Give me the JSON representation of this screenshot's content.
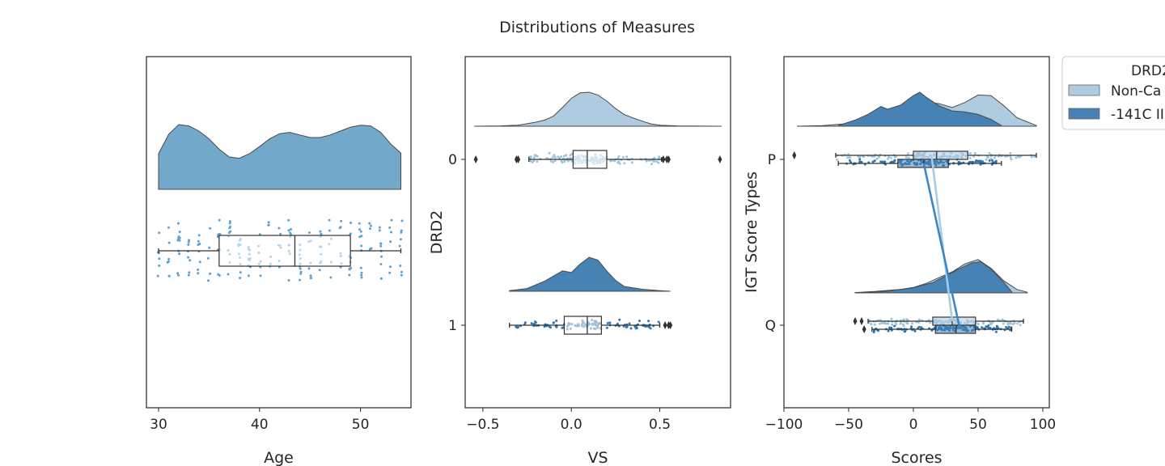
{
  "figure": {
    "title": "Distributions of Measures",
    "colors": {
      "light": "#aecbe0",
      "dark": "#4682b4",
      "mid": "#72a8c9",
      "line": "#555555"
    }
  },
  "legend": {
    "title": "DRD2",
    "entries": [
      "Non-Ca",
      "-141C II"
    ]
  },
  "chart_data": [
    {
      "type": "raincloud",
      "xlabel": "Age",
      "ylabel": "",
      "xlim": [
        28.8,
        55.0
      ],
      "xticks": [
        "30",
        "40",
        "50"
      ],
      "yticks": [],
      "box": {
        "whisker_low": 30,
        "q1": 36,
        "median": 43.5,
        "q3": 49,
        "whisker_high": 54
      },
      "density": [
        [
          30,
          0.55
        ],
        [
          31,
          0.85
        ],
        [
          32,
          1.0
        ],
        [
          33,
          0.98
        ],
        [
          34,
          0.9
        ],
        [
          35,
          0.78
        ],
        [
          36,
          0.62
        ],
        [
          37,
          0.5
        ],
        [
          38,
          0.48
        ],
        [
          39,
          0.55
        ],
        [
          40,
          0.66
        ],
        [
          41,
          0.78
        ],
        [
          42,
          0.86
        ],
        [
          43,
          0.88
        ],
        [
          44,
          0.84
        ],
        [
          45,
          0.8
        ],
        [
          46,
          0.8
        ],
        [
          47,
          0.84
        ],
        [
          48,
          0.9
        ],
        [
          49,
          0.96
        ],
        [
          50,
          0.99
        ],
        [
          51,
          0.98
        ],
        [
          52,
          0.88
        ],
        [
          53,
          0.7
        ],
        [
          54,
          0.56
        ]
      ]
    },
    {
      "type": "raincloud",
      "xlabel": "VS",
      "ylabel": "DRD2",
      "xlim": [
        -0.6,
        0.9
      ],
      "xticks": [
        "−0.5",
        "0.0",
        "0.5"
      ],
      "yticks": [
        "0",
        "1"
      ],
      "groups": [
        {
          "label": "0",
          "box": {
            "whisker_low": -0.24,
            "q1": 0.01,
            "median": 0.09,
            "q3": 0.2,
            "whisker_high": 0.51
          },
          "outliers": [
            -0.54,
            -0.31,
            -0.3,
            0.52,
            0.54,
            0.55,
            0.84
          ],
          "density": [
            [
              -0.55,
              0.0
            ],
            [
              -0.4,
              0.01
            ],
            [
              -0.3,
              0.03
            ],
            [
              -0.2,
              0.12
            ],
            [
              -0.15,
              0.18
            ],
            [
              -0.1,
              0.3
            ],
            [
              -0.05,
              0.55
            ],
            [
              0.0,
              0.82
            ],
            [
              0.05,
              0.98
            ],
            [
              0.1,
              1.0
            ],
            [
              0.15,
              0.92
            ],
            [
              0.2,
              0.74
            ],
            [
              0.25,
              0.52
            ],
            [
              0.3,
              0.34
            ],
            [
              0.35,
              0.24
            ],
            [
              0.4,
              0.15
            ],
            [
              0.45,
              0.07
            ],
            [
              0.5,
              0.03
            ],
            [
              0.6,
              0.01
            ],
            [
              0.85,
              0.0
            ]
          ]
        },
        {
          "label": "1",
          "box": {
            "whisker_low": -0.35,
            "q1": -0.04,
            "median": 0.09,
            "q3": 0.17,
            "whisker_high": 0.5
          },
          "outliers": [
            0.53,
            0.55,
            0.56
          ],
          "density": [
            [
              -0.35,
              0.02
            ],
            [
              -0.25,
              0.08
            ],
            [
              -0.15,
              0.3
            ],
            [
              -0.05,
              0.6
            ],
            [
              0.0,
              0.55
            ],
            [
              0.05,
              0.8
            ],
            [
              0.1,
              1.0
            ],
            [
              0.15,
              0.92
            ],
            [
              0.2,
              0.6
            ],
            [
              0.25,
              0.32
            ],
            [
              0.3,
              0.14
            ],
            [
              0.4,
              0.06
            ],
            [
              0.5,
              0.02
            ],
            [
              0.56,
              0.0
            ]
          ]
        }
      ]
    },
    {
      "type": "raincloud",
      "xlabel": "Scores",
      "ylabel": "IGT Score Types",
      "xlim": [
        -100,
        105
      ],
      "xticks": [
        "−100",
        "−50",
        "0",
        "50",
        "100"
      ],
      "yticks": [
        "P",
        "Q"
      ],
      "groups": [
        {
          "label": "P",
          "series": [
            {
              "name": "Non-Ca",
              "box": {
                "whisker_low": -60,
                "q1": 0,
                "median": 18,
                "q3": 42,
                "whisker_high": 95
              },
              "outliers": [
                -92
              ],
              "mean": 14,
              "density": [
                [
                  -90,
                  0.0
                ],
                [
                  -70,
                  0.02
                ],
                [
                  -50,
                  0.08
                ],
                [
                  -30,
                  0.2
                ],
                [
                  -10,
                  0.48
                ],
                [
                  0,
                  0.65
                ],
                [
                  10,
                  0.72
                ],
                [
                  20,
                  0.66
                ],
                [
                  30,
                  0.55
                ],
                [
                  40,
                  0.7
                ],
                [
                  50,
                  0.92
                ],
                [
                  60,
                  0.9
                ],
                [
                  70,
                  0.6
                ],
                [
                  80,
                  0.25
                ],
                [
                  95,
                  0.02
                ]
              ]
            },
            {
              "name": "-141C II",
              "box": {
                "whisker_low": -58,
                "q1": -12,
                "median": 8,
                "q3": 27,
                "whisker_high": 68
              },
              "outliers": [],
              "mean": 8,
              "density": [
                [
                  -58,
                  0.02
                ],
                [
                  -45,
                  0.18
                ],
                [
                  -35,
                  0.35
                ],
                [
                  -25,
                  0.58
                ],
                [
                  -20,
                  0.5
                ],
                [
                  -10,
                  0.62
                ],
                [
                  0,
                  0.9
                ],
                [
                  5,
                  1.0
                ],
                [
                  10,
                  0.85
                ],
                [
                  20,
                  0.6
                ],
                [
                  30,
                  0.45
                ],
                [
                  40,
                  0.42
                ],
                [
                  50,
                  0.35
                ],
                [
                  60,
                  0.2
                ],
                [
                  68,
                  0.02
                ]
              ]
            }
          ]
        },
        {
          "label": "Q",
          "series": [
            {
              "name": "Non-Ca",
              "box": {
                "whisker_low": -35,
                "q1": 15,
                "median": 30,
                "q3": 48,
                "whisker_high": 85
              },
              "outliers": [
                -45,
                -40
              ],
              "mean": 30,
              "density": [
                [
                  -45,
                  0.01
                ],
                [
                  -30,
                  0.04
                ],
                [
                  -10,
                  0.1
                ],
                [
                  0,
                  0.16
                ],
                [
                  10,
                  0.28
                ],
                [
                  20,
                  0.45
                ],
                [
                  30,
                  0.62
                ],
                [
                  40,
                  0.86
                ],
                [
                  50,
                  0.98
                ],
                [
                  60,
                  0.72
                ],
                [
                  70,
                  0.35
                ],
                [
                  80,
                  0.1
                ],
                [
                  88,
                  0.02
                ]
              ]
            },
            {
              "name": "-141C II",
              "box": {
                "whisker_low": -32,
                "q1": 17,
                "median": 33,
                "q3": 48,
                "whisker_high": 76
              },
              "outliers": [
                -38
              ],
              "mean": 36,
              "density": [
                [
                  -38,
                  0.01
                ],
                [
                  -20,
                  0.05
                ],
                [
                  0,
                  0.15
                ],
                [
                  15,
                  0.3
                ],
                [
                  25,
                  0.5
                ],
                [
                  35,
                  0.7
                ],
                [
                  45,
                  0.88
                ],
                [
                  52,
                  0.92
                ],
                [
                  60,
                  0.7
                ],
                [
                  70,
                  0.3
                ],
                [
                  76,
                  0.03
                ]
              ]
            }
          ]
        }
      ]
    }
  ]
}
